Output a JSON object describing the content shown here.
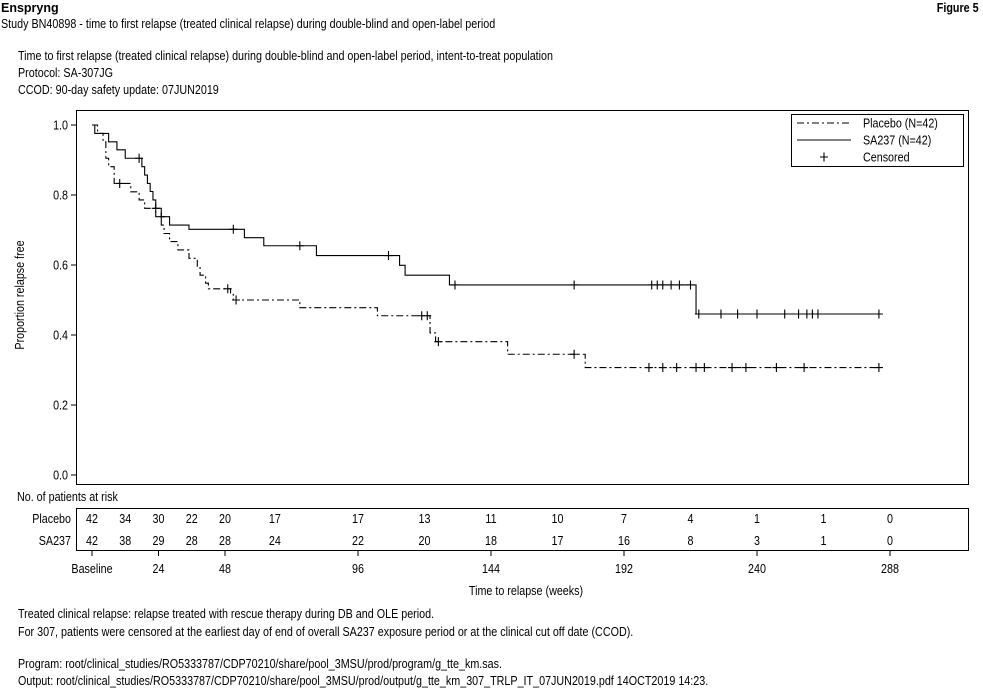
{
  "header": {
    "product": "Enspryng",
    "figure": "Figure 5",
    "study": "Study BN40898 - time to first relapse (treated clinical relapse) during double-blind and open-label period"
  },
  "subtitle": {
    "line1": "Time to first relapse (treated clinical relapse) during double-blind and open-label period, intent-to-treat population",
    "line2": "Protocol: SA-307JG",
    "line3": "CCOD: 90-day safety update: 07JUN2019"
  },
  "risk_table": {
    "heading": "No. of patients at risk",
    "rows": [
      {
        "label": "Placebo",
        "counts": [
          "42",
          "34",
          "30",
          "22",
          "20",
          "17",
          "17",
          "13",
          "11",
          "10",
          "7",
          "4",
          "1",
          "1",
          "0"
        ]
      },
      {
        "label": "SA237",
        "counts": [
          "42",
          "38",
          "29",
          "28",
          "28",
          "24",
          "22",
          "20",
          "18",
          "17",
          "16",
          "8",
          "3",
          "1",
          "0"
        ]
      }
    ],
    "timepoints": [
      0,
      12,
      24,
      36,
      48,
      66,
      96,
      120,
      144,
      168,
      192,
      216,
      240,
      264,
      288
    ]
  },
  "footer": {
    "note1": "Treated clinical relapse: relapse treated with rescue therapy during DB and OLE period.",
    "note2": "For 307, patients were censored at the earliest day of end of overall SA237 exposure period or at the clinical cut off date (CCOD).",
    "program": "Program: root/clinical_studies/RO5333787/CDP70210/share/pool_3MSU/prod/program/g_tte_km.sas.",
    "output": "Output: root/clinical_studies/RO5333787/CDP70210/share/pool_3MSU/prod/output/g_tte_km_307_TRLP_IT_07JUN2019.pdf 14OCT2019 14:23."
  },
  "chart_data": {
    "type": "line",
    "subtype": "kaplan-meier step",
    "xlabel": "Time to relapse (weeks)",
    "ylabel": "Proportion relapse free",
    "xlim": [
      0,
      295
    ],
    "ylim": [
      0,
      1.02
    ],
    "x_ticks": [
      0,
      24,
      48,
      96,
      144,
      192,
      240,
      288
    ],
    "x_tick_labels": [
      "Baseline",
      "24",
      "48",
      "96",
      "144",
      "192",
      "240",
      "288"
    ],
    "y_ticks": [
      0.0,
      0.2,
      0.4,
      0.6,
      0.8,
      1.0
    ],
    "y_tick_labels": [
      "0.0",
      "0.2",
      "0.4",
      "0.6",
      "0.8",
      "1.0"
    ],
    "grid": false,
    "legend_position": "top-right",
    "legend": [
      "Placebo (N=42)",
      "SA237 (N=42)",
      "Censored"
    ],
    "series": [
      {
        "name": "Placebo (N=42)",
        "line_style": "dash-dot",
        "steps": [
          [
            0,
            1.0
          ],
          [
            2,
            0.976
          ],
          [
            4,
            0.952
          ],
          [
            5,
            0.905
          ],
          [
            6,
            0.881
          ],
          [
            8,
            0.833
          ],
          [
            14,
            0.809
          ],
          [
            17,
            0.786
          ],
          [
            19,
            0.762
          ],
          [
            23,
            0.738
          ],
          [
            25,
            0.714
          ],
          [
            26,
            0.69
          ],
          [
            28,
            0.667
          ],
          [
            31,
            0.643
          ],
          [
            35,
            0.619
          ],
          [
            38,
            0.595
          ],
          [
            39,
            0.571
          ],
          [
            41,
            0.548
          ],
          [
            42,
            0.532
          ],
          [
            50,
            0.516
          ],
          [
            51,
            0.5
          ],
          [
            75,
            0.478
          ],
          [
            103,
            0.455
          ],
          [
            122,
            0.406
          ],
          [
            124,
            0.381
          ],
          [
            150,
            0.345
          ],
          [
            178,
            0.307
          ]
        ],
        "censored_x": [
          10,
          49,
          52,
          119,
          121,
          125,
          174,
          201,
          206,
          211,
          218,
          221,
          231,
          236,
          247,
          257,
          284
        ],
        "end_x": 284
      },
      {
        "name": "SA237 (N=42)",
        "line_style": "solid",
        "steps": [
          [
            0,
            1.0
          ],
          [
            1,
            0.976
          ],
          [
            6,
            0.952
          ],
          [
            9,
            0.929
          ],
          [
            12,
            0.905
          ],
          [
            18,
            0.881
          ],
          [
            19,
            0.857
          ],
          [
            20,
            0.833
          ],
          [
            21,
            0.81
          ],
          [
            22,
            0.786
          ],
          [
            23,
            0.762
          ],
          [
            25,
            0.738
          ],
          [
            28,
            0.714
          ],
          [
            35,
            0.702
          ],
          [
            55,
            0.678
          ],
          [
            62,
            0.655
          ],
          [
            81,
            0.627
          ],
          [
            111,
            0.599
          ],
          [
            113,
            0.571
          ],
          [
            129,
            0.543
          ],
          [
            218,
            0.46
          ]
        ],
        "censored_x": [
          17,
          23,
          25,
          51,
          75,
          107,
          131,
          174,
          202,
          204,
          206,
          209,
          212,
          216,
          219,
          227,
          233,
          240,
          250,
          255,
          258,
          260,
          262,
          284
        ],
        "end_x": 284
      }
    ]
  }
}
